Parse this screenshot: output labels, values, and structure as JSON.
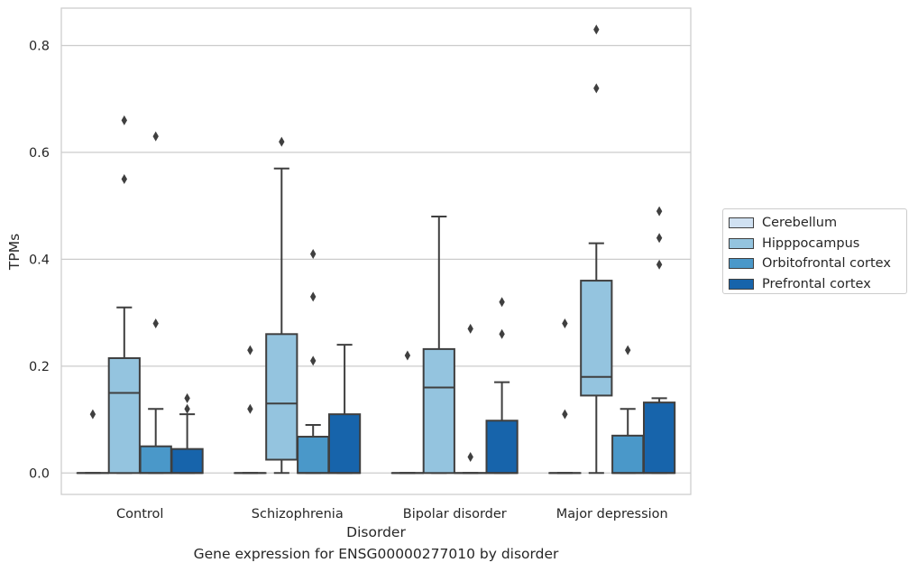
{
  "caption": "Gene expression for ENSG00000277010 by disorder",
  "chart_data": {
    "type": "box",
    "title": "",
    "xlabel": "Disorder",
    "ylabel": "TPMs",
    "ylim": [
      -0.04,
      0.87
    ],
    "yticks": [
      0.0,
      0.2,
      0.4,
      0.6,
      0.8
    ],
    "ytick_labels": [
      "0.0",
      "0.2",
      "0.4",
      "0.6",
      "0.8"
    ],
    "grid": true,
    "legend_position": "right",
    "categories": [
      "Control",
      "Schizophrenia",
      "Bipolar disorder",
      "Major depression"
    ],
    "series": [
      {
        "name": "Cerebellum",
        "color": "#d0e1f2",
        "boxes": [
          {
            "whisker_low": 0.0,
            "q1": 0.0,
            "median": 0.0,
            "q3": 0.0,
            "whisker_high": 0.0,
            "outliers": [
              0.11
            ]
          },
          {
            "whisker_low": 0.0,
            "q1": 0.0,
            "median": 0.0,
            "q3": 0.0,
            "whisker_high": 0.0,
            "outliers": [
              0.12,
              0.23
            ]
          },
          {
            "whisker_low": 0.0,
            "q1": 0.0,
            "median": 0.0,
            "q3": 0.0,
            "whisker_high": 0.0,
            "outliers": [
              0.22
            ]
          },
          {
            "whisker_low": 0.0,
            "q1": 0.0,
            "median": 0.0,
            "q3": 0.0,
            "whisker_high": 0.0,
            "outliers": [
              0.11,
              0.28
            ]
          }
        ]
      },
      {
        "name": "Hipppocampus",
        "color": "#94c4df",
        "boxes": [
          {
            "whisker_low": 0.0,
            "q1": 0.0,
            "median": 0.15,
            "q3": 0.215,
            "whisker_high": 0.31,
            "outliers": [
              0.55,
              0.66
            ]
          },
          {
            "whisker_low": 0.0,
            "q1": 0.025,
            "median": 0.13,
            "q3": 0.26,
            "whisker_high": 0.57,
            "outliers": [
              0.62
            ]
          },
          {
            "whisker_low": 0.0,
            "q1": 0.0,
            "median": 0.16,
            "q3": 0.232,
            "whisker_high": 0.48,
            "outliers": []
          },
          {
            "whisker_low": 0.0,
            "q1": 0.145,
            "median": 0.18,
            "q3": 0.36,
            "whisker_high": 0.43,
            "outliers": [
              0.72,
              0.83
            ]
          }
        ]
      },
      {
        "name": "Orbitofrontal cortex",
        "color": "#4a98c9",
        "boxes": [
          {
            "whisker_low": 0.0,
            "q1": 0.0,
            "median": 0.0,
            "q3": 0.05,
            "whisker_high": 0.12,
            "outliers": [
              0.28,
              0.63
            ]
          },
          {
            "whisker_low": 0.0,
            "q1": 0.0,
            "median": 0.0,
            "q3": 0.068,
            "whisker_high": 0.09,
            "outliers": [
              0.21,
              0.33,
              0.41
            ]
          },
          {
            "whisker_low": 0.0,
            "q1": 0.0,
            "median": 0.0,
            "q3": 0.0,
            "whisker_high": 0.0,
            "outliers": [
              0.03,
              0.27
            ]
          },
          {
            "whisker_low": 0.0,
            "q1": 0.0,
            "median": 0.0,
            "q3": 0.07,
            "whisker_high": 0.12,
            "outliers": [
              0.23
            ]
          }
        ]
      },
      {
        "name": "Prefrontal cortex",
        "color": "#1764ab",
        "boxes": [
          {
            "whisker_low": 0.0,
            "q1": 0.0,
            "median": 0.0,
            "q3": 0.045,
            "whisker_high": 0.11,
            "outliers": [
              0.12,
              0.14
            ]
          },
          {
            "whisker_low": 0.0,
            "q1": 0.0,
            "median": 0.0,
            "q3": 0.11,
            "whisker_high": 0.24,
            "outliers": []
          },
          {
            "whisker_low": 0.0,
            "q1": 0.0,
            "median": 0.0,
            "q3": 0.098,
            "whisker_high": 0.17,
            "outliers": [
              0.26,
              0.32
            ]
          },
          {
            "whisker_low": 0.0,
            "q1": 0.0,
            "median": 0.0,
            "q3": 0.132,
            "whisker_high": 0.14,
            "outliers": [
              0.39,
              0.44,
              0.49
            ]
          }
        ]
      }
    ]
  }
}
